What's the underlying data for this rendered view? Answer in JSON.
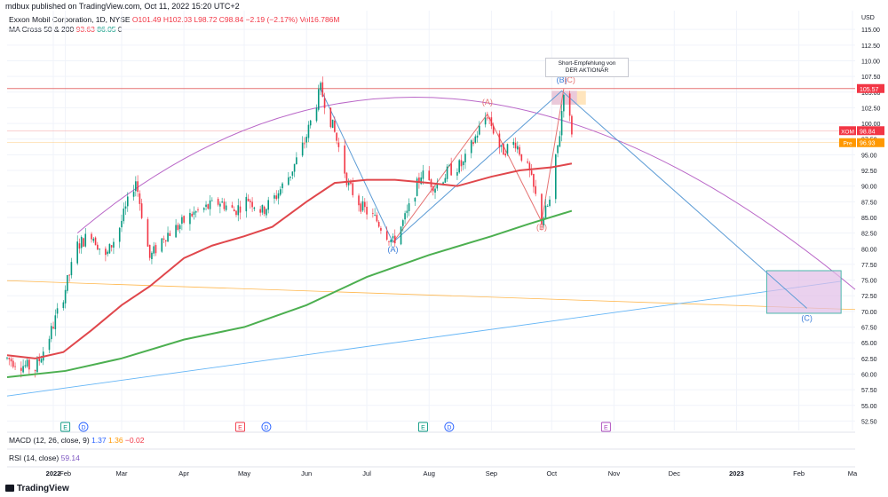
{
  "publisher_line": "mdbux published on TradingView.com, Oct 11, 2022 15:20 UTC+2",
  "legend": {
    "symbol": "Exxon Mobil Corporation, 1D, NYSE",
    "open": "O101.49",
    "high": "H102.03",
    "low": "L98.72",
    "close": "C98.84",
    "change": "−2.19 (−2.17%)",
    "volume": "Vol16.786M",
    "ma_label": "MA Cross 50 & 200",
    "ma50_value": "93.63",
    "ma200_value": "86.05",
    "ma_extra": "0"
  },
  "macd": {
    "label": "MACD (12, 26, close, 9)",
    "v1": "1.37",
    "v2": "1.36",
    "v3": "−0.02"
  },
  "rsi": {
    "label": "RSI (14, close)",
    "value": "59.14"
  },
  "brand": "TradingView",
  "callout": {
    "line1": "Short-Empfehlung von",
    "line2": "DER AKTIONÄR"
  },
  "colors": {
    "up": "#089981",
    "down": "#f23645",
    "ma50": "#e0474c",
    "ma200": "#4caf50",
    "arc": "#ba68c8",
    "wave": "#5b9bd5",
    "trend": "#64b5f6",
    "orange": "#ffb74d",
    "resistance": "#e57373",
    "target_box": "#e1bee7"
  },
  "chart_data": {
    "type": "candlestick",
    "currency": "USD",
    "ylim": [
      51,
      118
    ],
    "x_ticks": [
      "2022",
      "Feb",
      "Mar",
      "Apr",
      "May",
      "Jun",
      "Jul",
      "Aug",
      "Sep",
      "Oct",
      "Nov",
      "Dec",
      "2023",
      "Feb",
      "Ma"
    ],
    "y_ticks": [
      52.5,
      55.0,
      57.5,
      60.0,
      62.5,
      65.0,
      67.5,
      70.0,
      72.5,
      75.0,
      77.5,
      80.0,
      82.5,
      85.0,
      87.5,
      90.0,
      92.5,
      95.0,
      97.5,
      100.0,
      102.5,
      105.0,
      107.5,
      110.0,
      112.5,
      115.0
    ],
    "price_tags": [
      {
        "label": "",
        "value": "105.57",
        "price": 105.57,
        "color": "#f23645"
      },
      {
        "label": "XOM",
        "value": "98.84",
        "price": 98.84,
        "color": "#f23645"
      },
      {
        "label": "Pre",
        "value": "96.93",
        "price": 96.93,
        "color": "#ff9800"
      }
    ],
    "price_path": [
      [
        "2022-01-03",
        62.5
      ],
      [
        "2022-01-10",
        61.5
      ],
      [
        "2022-01-17",
        60.8
      ],
      [
        "2022-01-24",
        66.0
      ],
      [
        "2022-01-31",
        72.5
      ],
      [
        "2022-02-07",
        80.5
      ],
      [
        "2022-02-14",
        82.5
      ],
      [
        "2022-02-21",
        78.5
      ],
      [
        "2022-02-28",
        83.5
      ],
      [
        "2022-03-08",
        91.0
      ],
      [
        "2022-03-15",
        78.5
      ],
      [
        "2022-03-22",
        82.0
      ],
      [
        "2022-03-29",
        83.5
      ],
      [
        "2022-04-05",
        85.5
      ],
      [
        "2022-04-12",
        86.5
      ],
      [
        "2022-04-19",
        87.5
      ],
      [
        "2022-04-26",
        86.0
      ],
      [
        "2022-05-03",
        88.0
      ],
      [
        "2022-05-10",
        86.0
      ],
      [
        "2022-05-17",
        88.5
      ],
      [
        "2022-05-24",
        92.0
      ],
      [
        "2022-05-31",
        97.0
      ],
      [
        "2022-06-08",
        105.5
      ],
      [
        "2022-06-15",
        98.5
      ],
      [
        "2022-06-22",
        90.0
      ],
      [
        "2022-06-29",
        86.5
      ],
      [
        "2022-07-06",
        84.5
      ],
      [
        "2022-07-14",
        81.0
      ],
      [
        "2022-07-21",
        85.5
      ],
      [
        "2022-07-28",
        92.0
      ],
      [
        "2022-08-04",
        90.0
      ],
      [
        "2022-08-11",
        92.5
      ],
      [
        "2022-08-18",
        93.5
      ],
      [
        "2022-08-25",
        98.5
      ],
      [
        "2022-08-30",
        101.5
      ],
      [
        "2022-09-06",
        95.5
      ],
      [
        "2022-09-13",
        97.0
      ],
      [
        "2022-09-20",
        92.0
      ],
      [
        "2022-09-26",
        84.5
      ],
      [
        "2022-09-30",
        87.5
      ],
      [
        "2022-10-05",
        98.5
      ],
      [
        "2022-10-07",
        105.5
      ],
      [
        "2022-10-11",
        98.84
      ]
    ],
    "ma50": [
      [
        "2022-01-03",
        63.0
      ],
      [
        "2022-01-17",
        62.5
      ],
      [
        "2022-01-31",
        63.5
      ],
      [
        "2022-02-14",
        67.0
      ],
      [
        "2022-03-01",
        71.0
      ],
      [
        "2022-03-15",
        74.0
      ],
      [
        "2022-04-01",
        78.5
      ],
      [
        "2022-04-15",
        80.5
      ],
      [
        "2022-05-01",
        82.0
      ],
      [
        "2022-05-15",
        83.5
      ],
      [
        "2022-06-01",
        87.5
      ],
      [
        "2022-06-15",
        90.5
      ],
      [
        "2022-07-01",
        91.0
      ],
      [
        "2022-07-15",
        91.0
      ],
      [
        "2022-08-01",
        90.5
      ],
      [
        "2022-08-15",
        90.0
      ],
      [
        "2022-09-01",
        91.5
      ],
      [
        "2022-09-15",
        92.5
      ],
      [
        "2022-10-01",
        93.0
      ],
      [
        "2022-10-11",
        93.6
      ]
    ],
    "ma200": [
      [
        "2022-01-03",
        59.5
      ],
      [
        "2022-02-01",
        60.5
      ],
      [
        "2022-03-01",
        62.5
      ],
      [
        "2022-04-01",
        65.5
      ],
      [
        "2022-05-01",
        67.5
      ],
      [
        "2022-06-01",
        71.0
      ],
      [
        "2022-07-01",
        75.5
      ],
      [
        "2022-08-01",
        79.0
      ],
      [
        "2022-09-01",
        82.0
      ],
      [
        "2022-09-20",
        84.0
      ],
      [
        "2022-10-11",
        86.05
      ]
    ],
    "wave_labels": [
      {
        "text": "(A)",
        "date": "2022-07-14",
        "price": 79.5,
        "color": "#3b7dd8"
      },
      {
        "text": "(A)",
        "date": "2022-08-30",
        "price": 103.0,
        "color": "#e57373"
      },
      {
        "text": "(B)",
        "date": "2022-09-26",
        "price": 83.0,
        "color": "#e57373"
      },
      {
        "text": "(B)",
        "date": "2022-10-06",
        "price": 106.5,
        "color": "#3b7dd8"
      },
      {
        "text": "(C)",
        "date": "2022-10-10",
        "price": 106.5,
        "color": "#e57373"
      },
      {
        "text": "(C)",
        "date": "2023-02-05",
        "price": 68.5,
        "color": "#3b7dd8"
      }
    ],
    "event_markers": [
      {
        "text": "E",
        "date": "2022-02-01",
        "kind": "earnings"
      },
      {
        "text": "D",
        "date": "2022-02-10",
        "kind": "dividend"
      },
      {
        "text": "E",
        "date": "2022-04-29",
        "kind": "earnings"
      },
      {
        "text": "D",
        "date": "2022-05-12",
        "kind": "dividend"
      },
      {
        "text": "E",
        "date": "2022-07-29",
        "kind": "earnings"
      },
      {
        "text": "D",
        "date": "2022-08-11",
        "kind": "dividend"
      },
      {
        "text": "E",
        "date": "2022-10-28",
        "kind": "earnings-upcoming"
      }
    ]
  }
}
